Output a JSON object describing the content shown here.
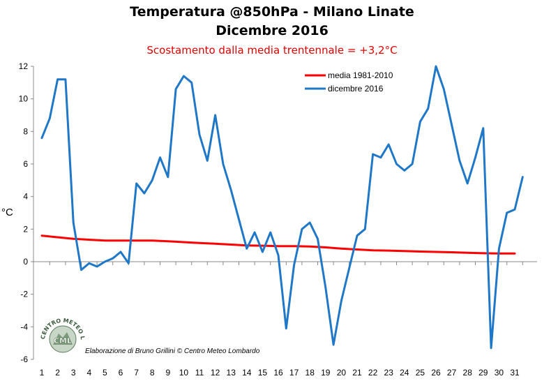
{
  "chart_data": {
    "type": "line",
    "title": "Temperatura @850hPa - Milano Linate",
    "title_line2": "Dicembre 2016",
    "subtitle": "Scostamento dalla media trentennale = +3,2°C",
    "xlabel": "",
    "ylabel": "°C",
    "ylim": [
      -6,
      12
    ],
    "yticks": [
      -6,
      -4,
      -2,
      0,
      2,
      4,
      6,
      8,
      10,
      12
    ],
    "xticks": [
      1,
      2,
      3,
      4,
      5,
      6,
      7,
      8,
      9,
      10,
      11,
      12,
      13,
      14,
      15,
      16,
      17,
      18,
      19,
      20,
      21,
      22,
      23,
      24,
      25,
      26,
      27,
      28,
      29,
      30,
      31
    ],
    "grid": false,
    "legend_position": "top-right",
    "series": [
      {
        "name": "media 1981-2010",
        "color": "#ff0000",
        "x": [
          1,
          2,
          3,
          4,
          5,
          6,
          7,
          8,
          9,
          10,
          11,
          12,
          13,
          14,
          15,
          16,
          17,
          18,
          19,
          20,
          21,
          22,
          23,
          24,
          25,
          26,
          27,
          28,
          29,
          30,
          31
        ],
        "y": [
          1.6,
          1.5,
          1.4,
          1.35,
          1.3,
          1.3,
          1.3,
          1.3,
          1.25,
          1.2,
          1.15,
          1.1,
          1.05,
          1.0,
          0.98,
          0.95,
          0.95,
          0.93,
          0.88,
          0.8,
          0.75,
          0.7,
          0.68,
          0.65,
          0.62,
          0.6,
          0.58,
          0.55,
          0.52,
          0.5,
          0.5
        ]
      },
      {
        "name": "dicembre 2016",
        "color": "#1f77c8",
        "x": [
          1,
          1.5,
          2,
          2.5,
          3,
          3.5,
          4,
          4.5,
          5,
          5.5,
          6,
          6.5,
          7,
          7.5,
          8,
          8.5,
          9,
          9.5,
          10,
          10.5,
          11,
          11.5,
          12,
          12.5,
          13,
          13.5,
          14,
          14.5,
          15,
          15.5,
          16,
          16.5,
          17,
          17.5,
          18,
          18.5,
          19,
          19.5,
          20,
          20.5,
          21,
          21.5,
          22,
          22.5,
          23,
          23.5,
          24,
          24.5,
          25,
          25.5,
          26,
          26.5,
          27,
          27.5,
          28,
          28.5,
          29,
          29.5,
          30,
          30.5,
          31,
          31.5
        ],
        "y": [
          7.6,
          8.8,
          11.2,
          11.2,
          2.4,
          -0.5,
          -0.1,
          -0.3,
          0.0,
          0.2,
          0.6,
          -0.1,
          4.8,
          4.2,
          5.0,
          6.4,
          5.2,
          10.6,
          11.4,
          11.0,
          7.8,
          6.2,
          9.0,
          6.0,
          4.4,
          2.6,
          0.8,
          1.8,
          0.6,
          1.8,
          0.4,
          -4.1,
          -0.2,
          2.0,
          2.4,
          1.4,
          -1.6,
          -5.1,
          -2.4,
          -0.4,
          1.6,
          2.0,
          6.6,
          6.4,
          7.2,
          6.0,
          5.6,
          6.0,
          8.6,
          9.4,
          12.0,
          10.6,
          8.4,
          6.2,
          4.8,
          6.4,
          8.2,
          -5.3,
          0.8,
          3.0,
          3.2,
          5.2
        ]
      }
    ]
  },
  "credit_text": "Elaborazione di Bruno Grillini  ©  Centro Meteo Lombardo",
  "logo": {
    "text": "CENTRO METEO LOMBARDO",
    "initials": "CML",
    "icon": "cml-logo-icon"
  }
}
